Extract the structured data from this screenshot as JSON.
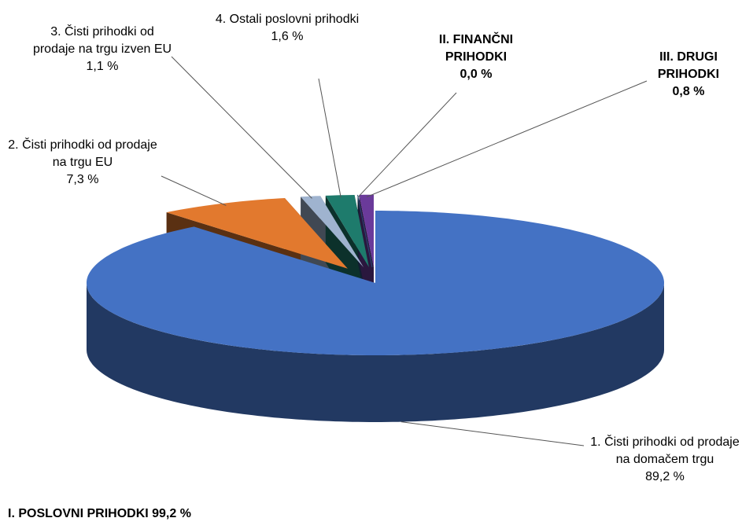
{
  "chart_data": {
    "type": "pie",
    "categories": [
      "1. Čisti prihodki od prodaje na domačem trgu",
      "2. Čisti prihodki od prodaje na trgu EU",
      "3. Čisti prihodki od prodaje na trgu izven EU",
      "4. Ostali poslovni prihodki",
      "II. FINANČNI PRIHODKI",
      "III. DRUGI PRIHODKI"
    ],
    "values": [
      89.2,
      7.3,
      1.1,
      1.6,
      0.0,
      0.8
    ],
    "value_labels": [
      "89,2 %",
      "7,3 %",
      "1,1 %",
      "1,6 %",
      "0,0 %",
      "0,8 %"
    ],
    "colors": [
      "#4472c4",
      "#e2792e",
      "#9fb3cf",
      "#1e7b6c",
      "#2a4a7a",
      "#6a3a9a"
    ],
    "annotation": "I. POSLOVNI PRIHODKI 99,2 %"
  }
}
